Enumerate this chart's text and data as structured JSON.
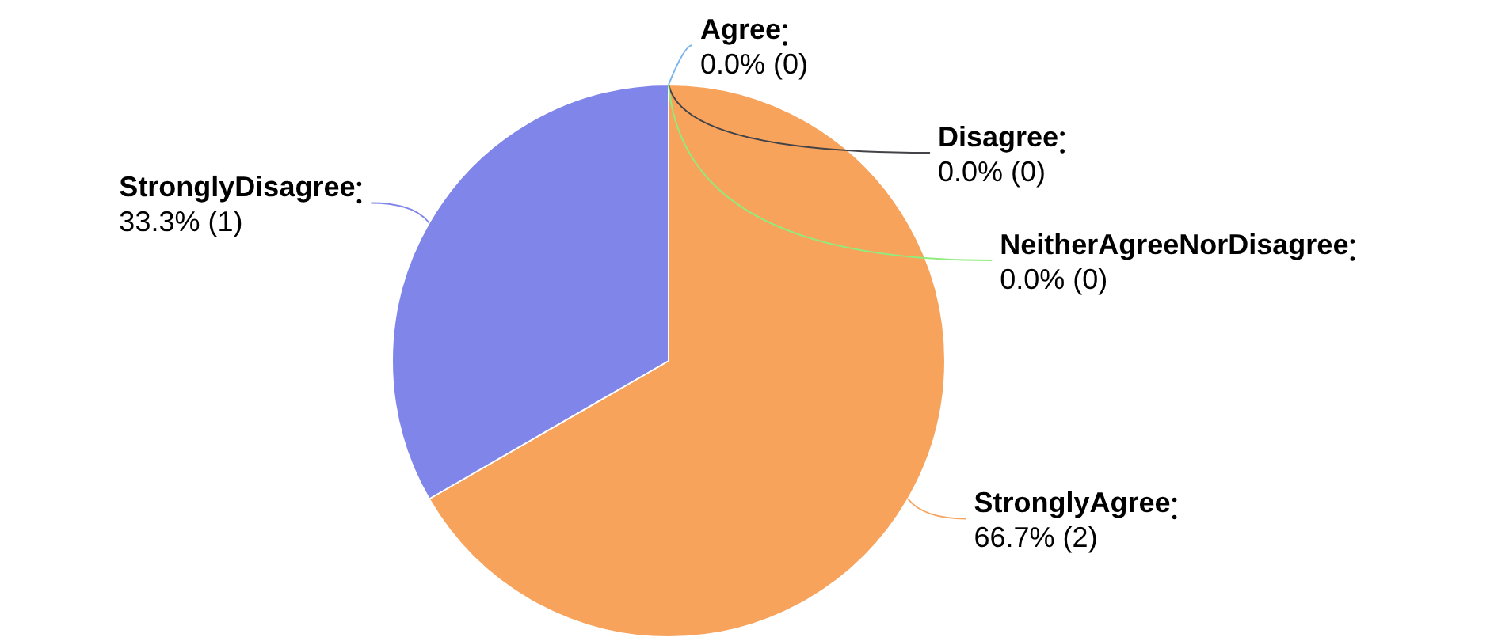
{
  "chart_data": {
    "type": "pie",
    "categories": [
      "Agree",
      "Disagree",
      "NeitherAgreeNorDisagree",
      "StronglyAgree",
      "StronglyDisagree"
    ],
    "values": [
      0,
      0,
      0,
      2,
      1
    ],
    "value_labels": [
      "0.0% (0)",
      "0.0% (0)",
      "0.0% (0)",
      "66.7% (2)",
      "33.3% (1)"
    ],
    "colors": [
      "#7cb5ec",
      "#434348",
      "#90ed7d",
      "#f7a35c",
      "#8085e9"
    ],
    "legend": false
  }
}
